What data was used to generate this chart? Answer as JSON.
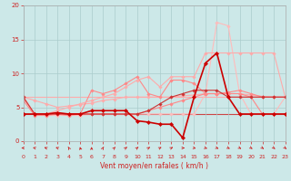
{
  "xlabel": "Vent moyen/en rafales ( km/h )",
  "xlim": [
    0,
    23
  ],
  "ylim": [
    0,
    20
  ],
  "xticks": [
    0,
    1,
    2,
    3,
    4,
    5,
    6,
    7,
    8,
    9,
    10,
    11,
    12,
    13,
    14,
    15,
    16,
    17,
    18,
    19,
    20,
    21,
    22,
    23
  ],
  "yticks": [
    0,
    5,
    10,
    15,
    20
  ],
  "bg_color": "#cce8e8",
  "grid_color": "#aacccc",
  "arrow_angles": [
    270,
    250,
    240,
    240,
    200,
    190,
    180,
    160,
    150,
    140,
    140,
    135,
    130,
    130,
    90,
    70,
    60,
    55,
    50,
    50,
    45,
    45,
    40,
    40
  ],
  "arrow_color": "#cc2222",
  "series": [
    {
      "x": [
        0,
        1,
        2,
        3,
        4,
        5,
        6,
        7,
        8,
        9,
        10,
        11,
        12,
        13,
        14,
        15,
        16,
        17,
        18,
        19,
        20,
        21,
        22,
        23
      ],
      "y": [
        6.5,
        6.5,
        6.5,
        6.5,
        6.5,
        6.5,
        6.5,
        6.5,
        6.5,
        6.5,
        6.5,
        6.5,
        6.5,
        6.5,
        6.5,
        6.5,
        6.5,
        6.5,
        6.5,
        6.5,
        6.5,
        6.5,
        6.5,
        6.5
      ],
      "color": "#ffaaaa",
      "lw": 0.8,
      "marker": null,
      "zorder": 1
    },
    {
      "x": [
        0,
        1,
        2,
        3,
        4,
        5,
        6,
        7,
        8,
        9,
        10,
        11,
        12,
        13,
        14,
        15,
        16,
        17,
        18,
        19,
        20,
        21,
        22,
        23
      ],
      "y": [
        4.0,
        4.0,
        4.0,
        4.0,
        4.0,
        4.0,
        4.0,
        4.0,
        4.0,
        4.0,
        4.0,
        4.0,
        4.0,
        4.0,
        4.0,
        4.0,
        4.0,
        4.0,
        4.0,
        4.0,
        4.0,
        4.0,
        4.0,
        4.0
      ],
      "color": "#cc4444",
      "lw": 0.8,
      "marker": null,
      "zorder": 1
    },
    {
      "x": [
        0,
        1,
        2,
        3,
        4,
        5,
        6,
        7,
        8,
        9,
        10,
        11,
        12,
        13,
        14,
        15,
        16,
        17,
        18,
        19,
        20,
        21,
        22,
        23
      ],
      "y": [
        6.5,
        4.0,
        3.8,
        3.8,
        3.8,
        3.8,
        4.0,
        4.0,
        4.0,
        4.0,
        4.0,
        4.0,
        4.0,
        4.0,
        4.0,
        4.0,
        7.0,
        17.5,
        17.0,
        7.0,
        4.0,
        4.0,
        4.0,
        6.5
      ],
      "color": "#ffbbbb",
      "lw": 0.8,
      "marker": "D",
      "ms": 1.8,
      "zorder": 2
    },
    {
      "x": [
        0,
        1,
        2,
        3,
        4,
        5,
        6,
        7,
        8,
        9,
        10,
        11,
        12,
        13,
        14,
        15,
        16,
        17,
        18,
        19,
        20,
        21,
        22,
        23
      ],
      "y": [
        6.5,
        6.0,
        5.5,
        5.0,
        5.2,
        5.4,
        5.6,
        6.0,
        6.2,
        6.5,
        6.5,
        6.5,
        6.5,
        6.5,
        6.7,
        6.8,
        7.0,
        7.0,
        7.0,
        7.0,
        6.8,
        6.6,
        6.5,
        6.5
      ],
      "color": "#ffaaaa",
      "lw": 0.8,
      "marker": "D",
      "ms": 1.8,
      "zorder": 2
    },
    {
      "x": [
        0,
        1,
        2,
        3,
        4,
        5,
        6,
        7,
        8,
        9,
        10,
        11,
        12,
        13,
        14,
        15,
        16,
        17,
        18,
        19,
        20,
        21,
        22,
        23
      ],
      "y": [
        6.0,
        3.8,
        3.8,
        4.0,
        3.8,
        4.0,
        7.5,
        7.0,
        7.5,
        8.5,
        9.5,
        7.0,
        6.5,
        9.0,
        9.0,
        8.5,
        7.0,
        7.0,
        7.2,
        7.5,
        7.0,
        6.5,
        6.5,
        6.5
      ],
      "color": "#ff8888",
      "lw": 0.8,
      "marker": "D",
      "ms": 1.8,
      "zorder": 2
    },
    {
      "x": [
        0,
        1,
        2,
        3,
        4,
        5,
        6,
        7,
        8,
        9,
        10,
        11,
        12,
        13,
        14,
        15,
        16,
        17,
        18,
        19,
        20,
        21,
        22,
        23
      ],
      "y": [
        6.5,
        4.0,
        4.0,
        4.0,
        4.0,
        4.0,
        4.0,
        4.0,
        4.0,
        4.0,
        4.0,
        4.5,
        5.0,
        5.5,
        6.0,
        6.5,
        7.0,
        7.0,
        7.0,
        7.0,
        6.5,
        4.0,
        4.0,
        4.0
      ],
      "color": "#ff8888",
      "lw": 0.8,
      "marker": "D",
      "ms": 1.8,
      "zorder": 2
    },
    {
      "x": [
        0,
        1,
        2,
        3,
        4,
        5,
        6,
        7,
        8,
        9,
        10,
        11,
        12,
        13,
        14,
        15,
        16,
        17,
        18,
        19,
        20,
        21,
        22,
        23
      ],
      "y": [
        6.5,
        4.0,
        4.0,
        4.5,
        5.0,
        5.5,
        6.0,
        6.5,
        7.0,
        8.0,
        9.0,
        9.5,
        8.0,
        9.5,
        9.5,
        9.5,
        13.0,
        13.0,
        13.0,
        13.0,
        13.0,
        13.0,
        13.0,
        6.5
      ],
      "color": "#ffaaaa",
      "lw": 0.8,
      "marker": "D",
      "ms": 1.8,
      "zorder": 2
    },
    {
      "x": [
        0,
        1,
        2,
        3,
        4,
        5,
        6,
        7,
        8,
        9,
        10,
        11,
        12,
        13,
        14,
        15,
        16,
        17,
        18,
        19,
        20,
        21,
        22,
        23
      ],
      "y": [
        6.5,
        4.0,
        4.0,
        4.0,
        4.0,
        4.0,
        4.0,
        4.0,
        4.0,
        4.0,
        4.0,
        4.5,
        5.5,
        6.5,
        7.0,
        7.5,
        7.5,
        7.5,
        6.5,
        6.5,
        6.5,
        6.5,
        6.5,
        6.5
      ],
      "color": "#cc3333",
      "lw": 0.8,
      "marker": "D",
      "ms": 1.8,
      "zorder": 2
    },
    {
      "x": [
        0,
        1,
        2,
        3,
        4,
        5,
        6,
        7,
        8,
        9,
        10,
        11,
        12,
        13,
        14,
        15,
        16,
        17,
        18,
        19,
        20,
        21,
        22,
        23
      ],
      "y": [
        4.0,
        4.0,
        4.0,
        4.2,
        4.0,
        4.0,
        4.5,
        4.5,
        4.5,
        4.5,
        3.0,
        2.8,
        2.5,
        2.5,
        0.5,
        6.5,
        11.5,
        13.0,
        6.5,
        4.0,
        4.0,
        4.0,
        4.0,
        4.0
      ],
      "color": "#cc0000",
      "lw": 1.2,
      "marker": "D",
      "ms": 2.2,
      "zorder": 3
    }
  ]
}
